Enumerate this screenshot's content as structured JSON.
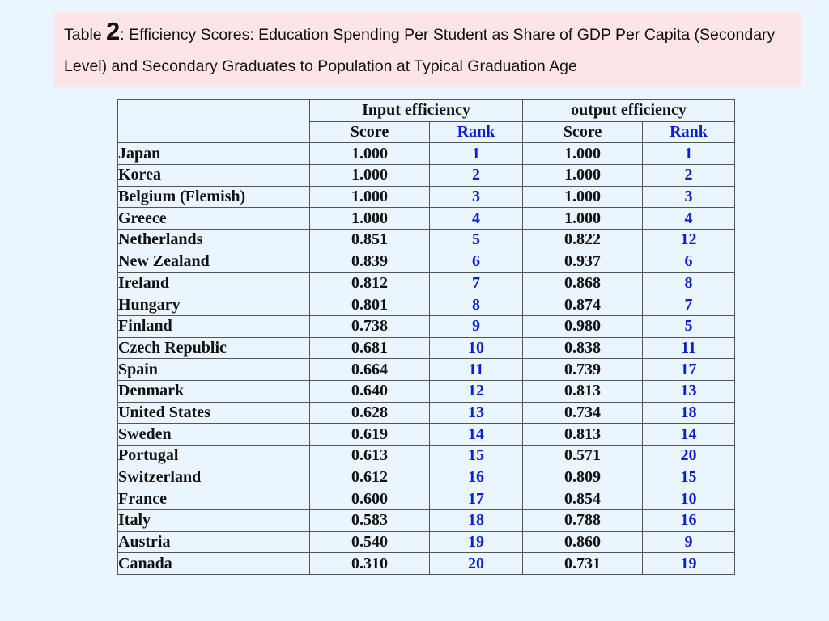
{
  "title": {
    "prefix": "Table ",
    "number": "2",
    "text": ": Efficiency Scores: Education Spending Per Student as Share of GDP Per Capita (Secondary Level) and Secondary Graduates to Population at Typical Graduation Age"
  },
  "table": {
    "group_headers": [
      "Input efficiency",
      "output efficiency"
    ],
    "sub_headers": [
      "Score",
      "Rank",
      "Score",
      "Rank"
    ],
    "rows": [
      {
        "country": "Japan",
        "input_score": "1.000",
        "input_rank": "1",
        "output_score": "1.000",
        "output_rank": "1"
      },
      {
        "country": "Korea",
        "input_score": "1.000",
        "input_rank": "2",
        "output_score": "1.000",
        "output_rank": "2"
      },
      {
        "country": "Belgium (Flemish)",
        "input_score": "1.000",
        "input_rank": "3",
        "output_score": "1.000",
        "output_rank": "3"
      },
      {
        "country": "Greece",
        "input_score": "1.000",
        "input_rank": "4",
        "output_score": "1.000",
        "output_rank": "4"
      },
      {
        "country": "Netherlands",
        "input_score": "0.851",
        "input_rank": "5",
        "output_score": "0.822",
        "output_rank": "12"
      },
      {
        "country": "New Zealand",
        "input_score": "0.839",
        "input_rank": "6",
        "output_score": "0.937",
        "output_rank": "6"
      },
      {
        "country": "Ireland",
        "input_score": "0.812",
        "input_rank": "7",
        "output_score": "0.868",
        "output_rank": "8"
      },
      {
        "country": "Hungary",
        "input_score": "0.801",
        "input_rank": "8",
        "output_score": "0.874",
        "output_rank": "7"
      },
      {
        "country": "Finland",
        "input_score": "0.738",
        "input_rank": "9",
        "output_score": "0.980",
        "output_rank": "5"
      },
      {
        "country": "Czech Republic",
        "input_score": "0.681",
        "input_rank": "10",
        "output_score": "0.838",
        "output_rank": "11"
      },
      {
        "country": "Spain",
        "input_score": "0.664",
        "input_rank": "11",
        "output_score": "0.739",
        "output_rank": "17"
      },
      {
        "country": "Denmark",
        "input_score": "0.640",
        "input_rank": "12",
        "output_score": "0.813",
        "output_rank": "13"
      },
      {
        "country": "United States",
        "input_score": "0.628",
        "input_rank": "13",
        "output_score": "0.734",
        "output_rank": "18"
      },
      {
        "country": "Sweden",
        "input_score": "0.619",
        "input_rank": "14",
        "output_score": "0.813",
        "output_rank": "14"
      },
      {
        "country": "Portugal",
        "input_score": "0.613",
        "input_rank": "15",
        "output_score": "0.571",
        "output_rank": "20"
      },
      {
        "country": "Switzerland",
        "input_score": "0.612",
        "input_rank": "16",
        "output_score": "0.809",
        "output_rank": "15"
      },
      {
        "country": "France",
        "input_score": "0.600",
        "input_rank": "17",
        "output_score": "0.854",
        "output_rank": "10"
      },
      {
        "country": "Italy",
        "input_score": "0.583",
        "input_rank": "18",
        "output_score": "0.788",
        "output_rank": "16"
      },
      {
        "country": "Austria",
        "input_score": "0.540",
        "input_rank": "19",
        "output_score": "0.860",
        "output_rank": "9"
      },
      {
        "country": "Canada",
        "input_score": "0.310",
        "input_rank": "20",
        "output_score": "0.731",
        "output_rank": "19"
      }
    ]
  },
  "colors": {
    "background": "#eaf5fd",
    "title_box": "#fde4e6",
    "rank_text": "#0a1fd0",
    "text": "#111111"
  }
}
